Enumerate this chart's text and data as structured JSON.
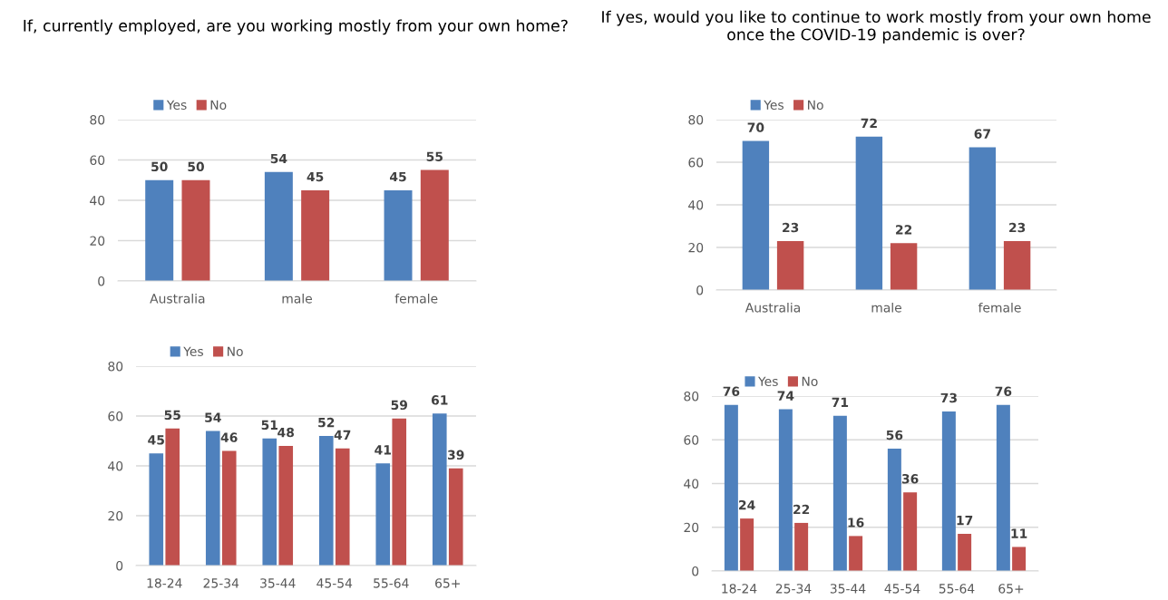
{
  "chart_data": [
    {
      "type": "bar",
      "title": "If, currently employed, are you working mostly from your own home?",
      "categories": [
        "Australia",
        "male",
        "female"
      ],
      "series": [
        {
          "name": "Yes",
          "color": "#4f81bd",
          "values": [
            50,
            54,
            45
          ]
        },
        {
          "name": "No",
          "color": "#c0504d",
          "values": [
            50,
            45,
            55
          ]
        }
      ],
      "ylim": [
        0,
        80
      ],
      "yticks": [
        0,
        20,
        40,
        60,
        80
      ],
      "grid": "y",
      "legend": "top left",
      "data_labels": true
    },
    {
      "type": "bar",
      "title": "If yes, would you like to continue to work mostly from your own home once the COVID-19 pandemic is over?",
      "categories": [
        "Australia",
        "male",
        "female"
      ],
      "series": [
        {
          "name": "Yes",
          "color": "#4f81bd",
          "values": [
            70,
            72,
            67
          ]
        },
        {
          "name": "No",
          "color": "#c0504d",
          "values": [
            23,
            22,
            23
          ]
        }
      ],
      "ylim": [
        0,
        80
      ],
      "yticks": [
        0,
        20,
        40,
        60,
        80
      ],
      "grid": "y",
      "legend": "top left",
      "data_labels": true
    },
    {
      "type": "bar",
      "categories": [
        "18-24",
        "25-34",
        "35-44",
        "45-54",
        "55-64",
        "65+"
      ],
      "series": [
        {
          "name": "Yes",
          "color": "#4f81bd",
          "values": [
            45,
            54,
            51,
            52,
            41,
            61
          ]
        },
        {
          "name": "No",
          "color": "#c0504d",
          "values": [
            55,
            46,
            48,
            47,
            59,
            39
          ]
        }
      ],
      "ylim": [
        0,
        80
      ],
      "yticks": [
        0,
        20,
        40,
        60,
        80
      ],
      "grid": "y",
      "legend": "top left",
      "data_labels": true
    },
    {
      "type": "bar",
      "categories": [
        "18-24",
        "25-34",
        "35-44",
        "45-54",
        "55-64",
        "65+"
      ],
      "series": [
        {
          "name": "Yes",
          "color": "#4f81bd",
          "values": [
            76,
            74,
            71,
            56,
            73,
            76
          ]
        },
        {
          "name": "No",
          "color": "#c0504d",
          "values": [
            24,
            22,
            16,
            36,
            17,
            11
          ]
        }
      ],
      "ylim": [
        0,
        80
      ],
      "yticks": [
        0,
        20,
        40,
        60,
        80
      ],
      "grid": "y",
      "legend": "top left",
      "data_labels": true
    }
  ]
}
